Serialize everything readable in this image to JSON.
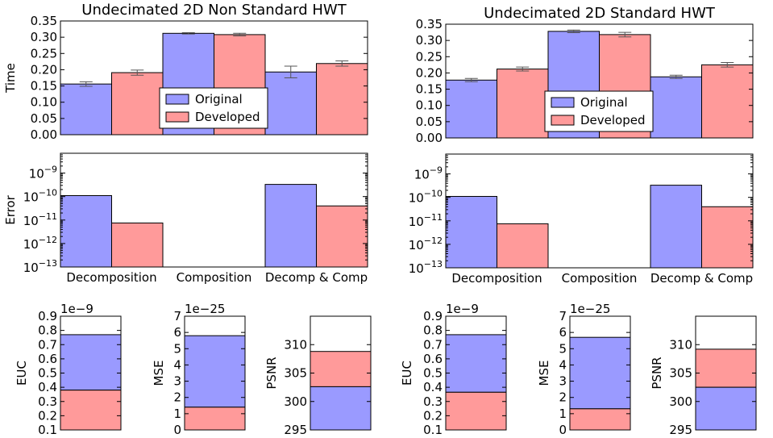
{
  "colors": {
    "original": "#9a9aff",
    "developed": "#ff9a9a"
  },
  "chart_data": [
    {
      "type": "bar",
      "title": "Undecimated 2D Non Standard HWT",
      "ylabel": "Time",
      "categories": [
        "Decomposition",
        "Composition",
        "Decomp & Comp"
      ],
      "ylim": [
        0,
        0.35
      ],
      "yticks": [
        "0.00",
        "0.05",
        "0.10",
        "0.15",
        "0.20",
        "0.25",
        "0.30",
        "0.35"
      ],
      "series": [
        {
          "name": "Original",
          "values": [
            0.156,
            0.312,
            0.193
          ],
          "errors": [
            0.007,
            0.002,
            0.018
          ]
        },
        {
          "name": "Developed",
          "values": [
            0.191,
            0.308,
            0.219
          ],
          "errors": [
            0.008,
            0.004,
            0.008
          ]
        }
      ],
      "legend": "lower-center"
    },
    {
      "type": "bar",
      "title": "Undecimated 2D Standard HWT",
      "ylabel": "",
      "categories": [
        "Decomposition",
        "Composition",
        "Decomp & Comp"
      ],
      "ylim": [
        0,
        0.35
      ],
      "yticks": [
        "0.00",
        "0.05",
        "0.10",
        "0.15",
        "0.20",
        "0.25",
        "0.30",
        "0.35"
      ],
      "series": [
        {
          "name": "Original",
          "values": [
            0.178,
            0.328,
            0.188
          ],
          "errors": [
            0.005,
            0.004,
            0.005
          ]
        },
        {
          "name": "Developed",
          "values": [
            0.212,
            0.318,
            0.225
          ],
          "errors": [
            0.006,
            0.007,
            0.007
          ]
        }
      ],
      "legend": "lower-center"
    },
    {
      "type": "bar",
      "title": "",
      "ylabel": "Error",
      "yscale": "log",
      "categories": [
        "Decomposition",
        "Composition",
        "Decomp & Comp"
      ],
      "ylim": [
        1e-13,
        7e-09
      ],
      "yticks": [
        1e-13,
        1e-12,
        1e-11,
        1e-10,
        1e-09
      ],
      "series": [
        {
          "name": "Original",
          "values": [
            1.1e-10,
            null,
            3.3e-10
          ]
        },
        {
          "name": "Developed",
          "values": [
            7.5e-12,
            null,
            4e-11
          ]
        }
      ]
    },
    {
      "type": "bar",
      "title": "",
      "ylabel": "",
      "yscale": "log",
      "categories": [
        "Decomposition",
        "Composition",
        "Decomp & Comp"
      ],
      "ylim": [
        1e-13,
        7e-09
      ],
      "yticks": [
        1e-13,
        1e-12,
        1e-11,
        1e-10,
        1e-09
      ],
      "series": [
        {
          "name": "Original",
          "values": [
            1.1e-10,
            null,
            3.3e-10
          ]
        },
        {
          "name": "Developed",
          "values": [
            7.5e-12,
            null,
            4e-11
          ]
        }
      ]
    },
    {
      "type": "bar",
      "stacked": true,
      "ylabel": "EUC",
      "offset": "1e−9",
      "ylim": [
        0.1,
        0.9
      ],
      "yticks": [
        "0.1",
        "0.2",
        "0.3",
        "0.4",
        "0.5",
        "0.6",
        "0.7",
        "0.8",
        "0.9"
      ],
      "values": {
        "developed": 0.38,
        "original": 0.77
      }
    },
    {
      "type": "bar",
      "stacked": true,
      "ylabel": "MSE",
      "offset": "1e−25",
      "ylim": [
        0,
        7
      ],
      "yticks": [
        "0",
        "1",
        "2",
        "3",
        "4",
        "5",
        "6",
        "7"
      ],
      "values": {
        "developed": 1.4,
        "original": 5.8
      }
    },
    {
      "type": "bar",
      "stacked": true,
      "ylabel": "PSNR",
      "offset": "",
      "ylim": [
        295,
        315
      ],
      "yticks": [
        "295",
        "300",
        "305",
        "310"
      ],
      "values": {
        "original": 302.6,
        "developed": 308.8
      }
    },
    {
      "type": "bar",
      "stacked": true,
      "ylabel": "EUC",
      "offset": "1e−9",
      "ylim": [
        0.1,
        0.9
      ],
      "yticks": [
        "0.1",
        "0.2",
        "0.3",
        "0.4",
        "0.5",
        "0.6",
        "0.7",
        "0.8",
        "0.9"
      ],
      "values": {
        "developed": 0.365,
        "original": 0.77
      }
    },
    {
      "type": "bar",
      "stacked": true,
      "ylabel": "MSE",
      "offset": "1e−25",
      "ylim": [
        0,
        7
      ],
      "yticks": [
        "0",
        "1",
        "2",
        "3",
        "4",
        "5",
        "6",
        "7"
      ],
      "values": {
        "developed": 1.3,
        "original": 5.7
      }
    },
    {
      "type": "bar",
      "stacked": true,
      "ylabel": "PSNR",
      "offset": "",
      "ylim": [
        295,
        315
      ],
      "yticks": [
        "295",
        "300",
        "305",
        "310"
      ],
      "values": {
        "original": 302.5,
        "developed": 309.2
      }
    }
  ]
}
